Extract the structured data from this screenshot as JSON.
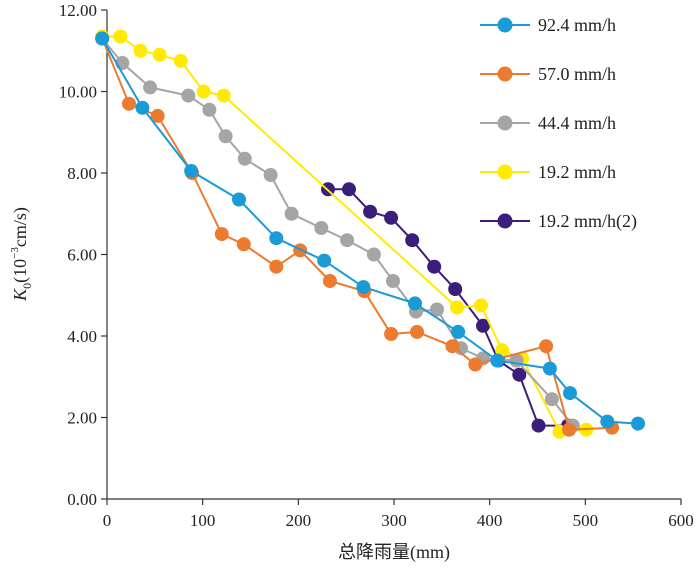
{
  "chart_data": {
    "type": "line",
    "title": "",
    "xlabel": "总降雨量(mm)",
    "ylabel_parts": {
      "main": "K",
      "sub": "0",
      "pre": "(10",
      "sup": "−3",
      "post": "cm/s)"
    },
    "xlim": [
      0,
      600
    ],
    "ylim": [
      0,
      12
    ],
    "x_ticks": [
      0,
      100,
      200,
      300,
      400,
      500,
      600
    ],
    "y_ticks": [
      0,
      2,
      4,
      6,
      8,
      10,
      12
    ],
    "x_tick_labels": [
      "0",
      "100",
      "200",
      "300",
      "400",
      "500",
      "600"
    ],
    "y_tick_labels": [
      "0.00",
      "2.00",
      "4.00",
      "6.00",
      "8.00",
      "10.00",
      "12.00"
    ],
    "grid": false,
    "legend_position": "top-right",
    "series": [
      {
        "name": "92.4 mm/h",
        "color": "#1a9ad6",
        "points": [
          [
            -5,
            11.3
          ],
          [
            37,
            9.6
          ],
          [
            88,
            8.05
          ],
          [
            138,
            7.35
          ],
          [
            177,
            6.4
          ],
          [
            227,
            5.85
          ],
          [
            268,
            5.2
          ],
          [
            322,
            4.8
          ],
          [
            367,
            4.1
          ],
          [
            408,
            3.4
          ],
          [
            463,
            3.2
          ],
          [
            484,
            2.6
          ],
          [
            523,
            1.9
          ],
          [
            555,
            1.85
          ]
        ]
      },
      {
        "name": "57.0 mm/h",
        "color": "#ec7a2f",
        "points": [
          [
            -5,
            11.3
          ],
          [
            23,
            9.7
          ],
          [
            53,
            9.4
          ],
          [
            89,
            8.0
          ],
          [
            120,
            6.5
          ],
          [
            143,
            6.25
          ],
          [
            177,
            5.7
          ],
          [
            202,
            6.1
          ],
          [
            233,
            5.35
          ],
          [
            269,
            5.1
          ],
          [
            297,
            4.05
          ],
          [
            324,
            4.1
          ],
          [
            361,
            3.75
          ],
          [
            385,
            3.3
          ],
          [
            459,
            3.75
          ],
          [
            483,
            1.7
          ],
          [
            528,
            1.75
          ]
        ]
      },
      {
        "name": "44.4 mm/h",
        "color": "#a5a5a5",
        "points": [
          [
            -5,
            11.3
          ],
          [
            16,
            10.7
          ],
          [
            45,
            10.1
          ],
          [
            85,
            9.9
          ],
          [
            107,
            9.55
          ],
          [
            124,
            8.9
          ],
          [
            144,
            8.35
          ],
          [
            171,
            7.95
          ],
          [
            193,
            7.0
          ],
          [
            224,
            6.65
          ],
          [
            251,
            6.35
          ],
          [
            279,
            6.0
          ],
          [
            299,
            5.35
          ],
          [
            323,
            4.6
          ],
          [
            345,
            4.65
          ],
          [
            370,
            3.7
          ],
          [
            393,
            3.45
          ],
          [
            428,
            3.4
          ],
          [
            465,
            2.45
          ],
          [
            487,
            1.8
          ]
        ]
      },
      {
        "name": "19.2 mm/h",
        "color": "#ffea00",
        "points": [
          [
            -5,
            11.35
          ],
          [
            14,
            11.35
          ],
          [
            35,
            11.0
          ],
          [
            55,
            10.9
          ],
          [
            77,
            10.75
          ],
          [
            101,
            10.0
          ],
          [
            122,
            9.9
          ],
          [
            366,
            4.7
          ],
          [
            391,
            4.75
          ],
          [
            413,
            3.65
          ],
          [
            434,
            3.45
          ],
          [
            473,
            1.65
          ],
          [
            501,
            1.7
          ]
        ]
      },
      {
        "name": "19.2 mm/h(2)",
        "color": "#3b1d7a",
        "points": [
          [
            231,
            7.6
          ],
          [
            253,
            7.6
          ],
          [
            275,
            7.05
          ],
          [
            297,
            6.9
          ],
          [
            319,
            6.35
          ],
          [
            342,
            5.7
          ],
          [
            364,
            5.15
          ],
          [
            393,
            4.25
          ],
          [
            409,
            3.4
          ],
          [
            431,
            3.05
          ],
          [
            451,
            1.8
          ],
          [
            482,
            1.8
          ]
        ]
      }
    ]
  }
}
